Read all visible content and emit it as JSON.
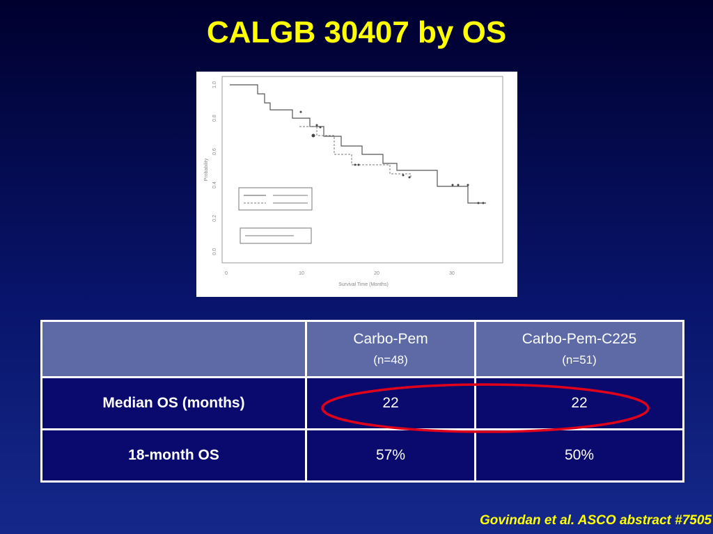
{
  "header": {
    "title": "CALGB 30407 by OS"
  },
  "figure": {
    "y_label": "Probability",
    "x_label": "Survival Time (Months)",
    "x_ticks": [
      "0",
      "10",
      "20",
      "30"
    ],
    "y_ticks": [
      "1.0",
      "0.8",
      "0.6",
      "0.4",
      "0.2",
      "0.0"
    ]
  },
  "table": {
    "columns": [
      {
        "name": "Carbo-Pem",
        "n": "(n=48)"
      },
      {
        "name": "Carbo-Pem-C225",
        "n": "(n=51)"
      }
    ],
    "rows": [
      [
        "Median OS (months)",
        "22",
        "22"
      ],
      [
        "18-month OS",
        "57%",
        "50%"
      ]
    ]
  },
  "footer": {
    "citation": "Govindan et al. ASCO abstract #7505"
  }
}
